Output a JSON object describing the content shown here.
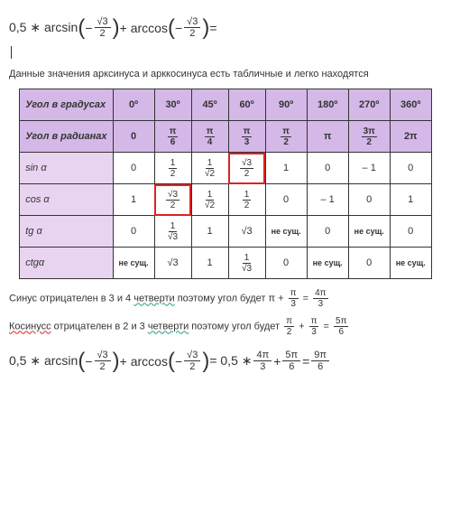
{
  "formula1": {
    "lead": "0,5 ∗ arcsin",
    "arg1_num": "√3",
    "arg1_den": "2",
    "plus": " + arccos",
    "arg2_num": "√3",
    "arg2_den": "2",
    "eq": " ="
  },
  "intro_text": "Данные значения арксинуса и арккосинуса  есть табличные и легко находятся",
  "table": {
    "header_row": [
      "Угол в градусах",
      "0º",
      "30º",
      "45º",
      "60º",
      "90º",
      "180º",
      "270º",
      "360º"
    ],
    "rad_row_label": "Угол в радианах",
    "rad_row": [
      {
        "t": "plain",
        "v": "0"
      },
      {
        "t": "frac",
        "n": "π",
        "d": "6"
      },
      {
        "t": "frac",
        "n": "π",
        "d": "4"
      },
      {
        "t": "frac",
        "n": "π",
        "d": "3"
      },
      {
        "t": "frac",
        "n": "π",
        "d": "2"
      },
      {
        "t": "plain",
        "v": "π"
      },
      {
        "t": "frac",
        "n": "3π",
        "d": "2"
      },
      {
        "t": "plain",
        "v": "2π"
      }
    ],
    "rows": [
      {
        "label": "sin α",
        "cells": [
          {
            "t": "plain",
            "v": "0"
          },
          {
            "t": "frac",
            "n": "1",
            "d": "2"
          },
          {
            "t": "frac",
            "n": "1",
            "d": "√2"
          },
          {
            "t": "frac",
            "n": "√3",
            "d": "2",
            "red": true
          },
          {
            "t": "plain",
            "v": "1"
          },
          {
            "t": "plain",
            "v": "0"
          },
          {
            "t": "plain",
            "v": "– 1"
          },
          {
            "t": "plain",
            "v": "0"
          }
        ]
      },
      {
        "label": "cos α",
        "cells": [
          {
            "t": "plain",
            "v": "1"
          },
          {
            "t": "frac",
            "n": "√3",
            "d": "2",
            "red": true
          },
          {
            "t": "frac",
            "n": "1",
            "d": "√2"
          },
          {
            "t": "frac",
            "n": "1",
            "d": "2"
          },
          {
            "t": "plain",
            "v": "0"
          },
          {
            "t": "plain",
            "v": "– 1"
          },
          {
            "t": "plain",
            "v": "0"
          },
          {
            "t": "plain",
            "v": "1"
          }
        ]
      },
      {
        "label": "tg α",
        "cells": [
          {
            "t": "plain",
            "v": "0"
          },
          {
            "t": "frac",
            "n": "1",
            "d": "√3"
          },
          {
            "t": "plain",
            "v": "1"
          },
          {
            "t": "plain",
            "v": "√3"
          },
          {
            "t": "plain",
            "v": "не сущ."
          },
          {
            "t": "plain",
            "v": "0"
          },
          {
            "t": "plain",
            "v": "не сущ."
          },
          {
            "t": "plain",
            "v": "0"
          }
        ]
      },
      {
        "label": "ctgα",
        "cells": [
          {
            "t": "plain",
            "v": "не сущ."
          },
          {
            "t": "plain",
            "v": "√3"
          },
          {
            "t": "plain",
            "v": "1"
          },
          {
            "t": "frac",
            "n": "1",
            "d": "√3"
          },
          {
            "t": "plain",
            "v": "0"
          },
          {
            "t": "plain",
            "v": "не сущ."
          },
          {
            "t": "plain",
            "v": "0"
          },
          {
            "t": "plain",
            "v": "не сущ."
          }
        ]
      }
    ],
    "header_bg": "#d4b8e8",
    "label_bg": "#e8d4f0",
    "red_outline": "#d22"
  },
  "line_sin": {
    "pre": "Синус отрицателен в 3  и 4 ",
    "wavy": "четверти",
    "post": " поэтому угол будет ",
    "f1n": "π",
    "f1d": "3",
    "f2n": "4π",
    "f2d": "3"
  },
  "line_cos": {
    "wavy1": "Косинусс",
    "mid": " отрицателен в 2  и 3  ",
    "wavy2": "четверти",
    "post": " поэтому угол будет ",
    "f1n": "π",
    "f1d": "2",
    "f2n": "π",
    "f2d": "3",
    "f3n": "5π",
    "f3d": "6"
  },
  "formula2": {
    "lead": "0,5 ∗ arcsin",
    "arg1_num": "√3",
    "arg1_den": "2",
    "plus": " + arccos",
    "arg2_num": "√3",
    "arg2_den": "2",
    "mid": " = 0,5 ∗ ",
    "r1n": "4π",
    "r1d": "3",
    "r2n": "5π",
    "r2d": "6",
    "r3n": "9π",
    "r3d": "6"
  }
}
